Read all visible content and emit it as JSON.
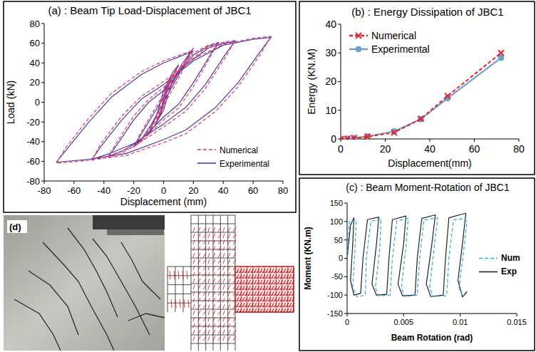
{
  "chart_data": [
    {
      "type": "line",
      "title": "(a) : Beam Tip Load-Displacement of JBC1",
      "x_label": "Displacement (mm)",
      "y_label": "Load (kN)",
      "xlim": [
        -80,
        80
      ],
      "xticks": [
        -80,
        -60,
        -40,
        -20,
        0,
        20,
        40,
        60,
        80
      ],
      "ylim": [
        -80,
        80
      ],
      "yticks": [
        -80,
        -60,
        -40,
        -20,
        0,
        20,
        40,
        60,
        80
      ],
      "grid": false,
      "legend": "lower right",
      "series": [
        {
          "name": "Numerical",
          "color": "#e8336b",
          "line_style": "dashed",
          "marker": "none",
          "x": [
            0,
            2,
            5,
            2,
            0,
            -2,
            -5,
            -2,
            0,
            4,
            10,
            6,
            0,
            -4,
            -10,
            -6,
            0,
            5,
            12,
            20,
            16,
            8,
            0,
            -8,
            -15,
            -20,
            -16,
            -8,
            0,
            10,
            20,
            30,
            37,
            32,
            20,
            10,
            0,
            -15,
            -28,
            -37,
            -32,
            -20,
            -10,
            0,
            15,
            30,
            40,
            48,
            42,
            28,
            15,
            0,
            -20,
            -36,
            -48,
            -42,
            -28,
            -15,
            0,
            20,
            40,
            60,
            72,
            65,
            50,
            35,
            15,
            0,
            -25,
            -50,
            -72,
            -65,
            -50,
            -35,
            -15,
            0,
            20
          ],
          "values": [
            0,
            11,
            24,
            13,
            3,
            -9,
            -21,
            -10,
            0,
            19,
            37,
            27,
            10,
            -12,
            -31,
            -21,
            -5,
            16,
            36,
            53,
            42,
            18,
            -3,
            -24,
            -39,
            -46,
            -33,
            -12,
            8,
            32,
            50,
            58,
            61,
            48,
            16,
            -6,
            -18,
            -40,
            -52,
            -56,
            -42,
            -14,
            3,
            15,
            40,
            56,
            61,
            63,
            47,
            14,
            -9,
            -25,
            -45,
            -54,
            -59,
            -42,
            -14,
            6,
            21,
            44,
            59,
            65,
            67,
            49,
            16,
            -9,
            -32,
            -41,
            -54,
            -59,
            -62,
            -45,
            -16,
            9,
            31,
            42,
            53
          ]
        },
        {
          "name": "Experimental",
          "color": "#4a3f9f",
          "line_style": "solid",
          "marker": "none",
          "x": [
            0,
            2,
            5,
            2,
            0,
            -2,
            -5,
            -2,
            0,
            4,
            10,
            6,
            0,
            -4,
            -10,
            -6,
            0,
            5,
            12,
            20,
            16,
            8,
            0,
            -8,
            -15,
            -20,
            -16,
            -8,
            0,
            10,
            20,
            30,
            37,
            32,
            20,
            10,
            0,
            -15,
            -28,
            -37,
            -32,
            -20,
            -10,
            0,
            15,
            30,
            40,
            48,
            42,
            28,
            15,
            0,
            -20,
            -36,
            -48,
            -42,
            -28,
            -15,
            0,
            20,
            40,
            60,
            72,
            65,
            50,
            35,
            15,
            0,
            -25,
            -50,
            -72,
            -65,
            -50,
            -35,
            -15,
            0,
            20
          ],
          "values": [
            0,
            12,
            25,
            15,
            5,
            -10,
            -22,
            -12,
            -2,
            20,
            38,
            30,
            12,
            -10,
            -32,
            -24,
            -8,
            18,
            38,
            55,
            45,
            22,
            0,
            -22,
            -38,
            -45,
            -35,
            -15,
            5,
            30,
            48,
            57,
            60,
            50,
            20,
            -2,
            -15,
            -38,
            -50,
            -55,
            -45,
            -18,
            0,
            12,
            38,
            55,
            60,
            62,
            50,
            18,
            -5,
            -22,
            -42,
            -52,
            -58,
            -45,
            -18,
            3,
            18,
            42,
            58,
            64,
            66,
            52,
            20,
            -5,
            -28,
            -38,
            -52,
            -58,
            -61,
            -48,
            -20,
            5,
            28,
            40,
            52
          ]
        }
      ]
    },
    {
      "type": "line",
      "title": "(b) : Energy Dissipation of JBC1",
      "x_label": "Displacement(mm)",
      "y_label": "Energy (KN.M)",
      "xlim": [
        0,
        80
      ],
      "xticks": [
        0,
        20,
        40,
        60,
        80
      ],
      "ylim": [
        0,
        40
      ],
      "yticks": [
        0,
        10,
        20,
        30,
        40
      ],
      "grid": false,
      "legend": "upper left",
      "series": [
        {
          "name": "Numerical",
          "color": "#e8202a",
          "line_style": "dashed",
          "marker": "x",
          "x": [
            0,
            3,
            6,
            12,
            24,
            36,
            48,
            72
          ],
          "values": [
            0,
            0.1,
            0.3,
            0.8,
            2.2,
            7,
            15,
            30
          ]
        },
        {
          "name": "Experimental",
          "color": "#6f9fcf",
          "line_style": "solid",
          "marker": "circle",
          "x": [
            0,
            3,
            6,
            12,
            24,
            36,
            48,
            72
          ],
          "values": [
            0,
            0.1,
            0.3,
            0.9,
            2.7,
            6.9,
            14.2,
            28.3
          ]
        }
      ]
    },
    {
      "type": "line",
      "title": "(c) : Beam Moment-Rotation of JBC1",
      "x_label": "Beam Rotation (rad)",
      "y_label": "Moment (KN.m)",
      "xlim": [
        0,
        0.015
      ],
      "xticks": [
        0,
        0.005,
        0.01,
        0.015
      ],
      "ylim": [
        -150,
        150
      ],
      "yticks": [
        -150,
        -100,
        -50,
        0,
        50,
        100,
        150
      ],
      "grid": false,
      "legend": "right",
      "series": [
        {
          "name": "Num",
          "color": "#29abe2",
          "line_style": "dashed",
          "marker": "none",
          "x": [
            0,
            0.0002,
            0.0008,
            0.0007,
            0.0005,
            0.0009,
            0.0016,
            0.0017,
            0.0021,
            0.003,
            0.0029,
            0.0025,
            0.0028,
            0.0038,
            0.004,
            0.0044,
            0.0054,
            0.0052,
            0.0048,
            0.0051,
            0.0062,
            0.0064,
            0.0068,
            0.008,
            0.0077,
            0.0073,
            0.0076,
            0.0088,
            0.009,
            0.0094,
            0.0103,
            0.0106,
            0.0103,
            0.0099,
            0.0102,
            0.0105
          ],
          "values": [
            0,
            100,
            105,
            30,
            -80,
            -105,
            -100,
            0,
            100,
            108,
            30,
            -80,
            -102,
            -100,
            0,
            102,
            108,
            30,
            -80,
            -104,
            -100,
            0,
            104,
            110,
            30,
            -80,
            -104,
            -102,
            0,
            104,
            108,
            100,
            20,
            -80,
            -102,
            -98
          ]
        },
        {
          "name": "Exp",
          "color": "#222222",
          "line_style": "solid",
          "marker": "none",
          "x": [
            0,
            0.0003,
            0.0006,
            0.0005,
            0.0003,
            0.0006,
            0.0012,
            0.0014,
            0.0018,
            0.0028,
            0.0026,
            0.0022,
            0.0026,
            0.0035,
            0.0037,
            0.004,
            0.0052,
            0.005,
            0.0045,
            0.0049,
            0.006,
            0.0062,
            0.0066,
            0.0078,
            0.0075,
            0.007,
            0.0074,
            0.0085,
            0.0087,
            0.009,
            0.0102,
            0.0105,
            0.0102,
            0.0098,
            0.0102,
            0.0106
          ],
          "values": [
            0,
            90,
            110,
            40,
            -60,
            -100,
            -95,
            0,
            105,
            112,
            40,
            -70,
            -100,
            -98,
            0,
            105,
            115,
            40,
            -70,
            -102,
            -100,
            0,
            108,
            118,
            40,
            -70,
            -104,
            -100,
            0,
            110,
            120,
            122,
            40,
            -60,
            -105,
            -90
          ]
        }
      ]
    }
  ],
  "panel_d": {
    "label": "(d)"
  }
}
